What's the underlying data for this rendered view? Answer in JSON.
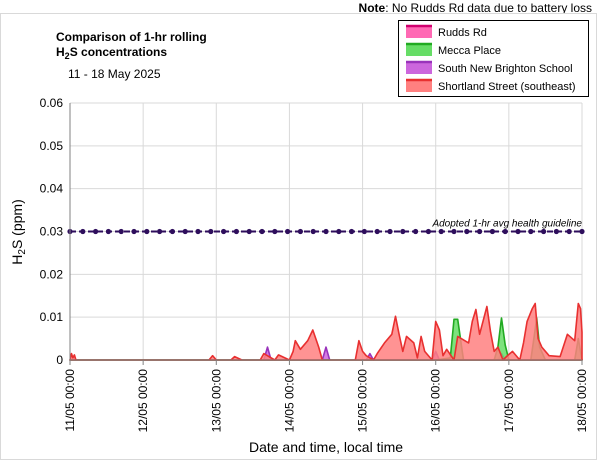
{
  "note": {
    "label": "Note",
    "text": ": No Rudds Rd data due to battery loss"
  },
  "chart_data": {
    "type": "area",
    "title_line1": "Comparison of 1-hr rolling",
    "title_line2_prefix": "H",
    "title_line2_sub": "2",
    "title_line2_suffix": "S concentrations",
    "subtitle": "11 - 18 May 2025",
    "ylabel_prefix": "H",
    "ylabel_sub": "2",
    "ylabel_suffix": "S (ppm)",
    "xlabel": "Date and time, local time",
    "ylim": [
      0,
      0.06
    ],
    "xlim": [
      0,
      7
    ],
    "yticks": [
      "0",
      "0.01",
      "0.02",
      "0.03",
      "0.04",
      "0.05",
      "0.06"
    ],
    "xticks": [
      "11/05 00:00",
      "12/05 00:00",
      "13/05 00:00",
      "14/05 00:00",
      "15/05 00:00",
      "16/05 00:00",
      "17/05 00:00",
      "18/05 00:00"
    ],
    "grid": true,
    "legend_position": "top-right",
    "guideline": {
      "label": "Adopted 1-hr avg health guideline",
      "value": 0.03,
      "color": "#2e0e5c"
    },
    "series": [
      {
        "name": "Rudds Rd",
        "fill": "#ff69b4",
        "stroke": "#d0006f",
        "x": [],
        "y": []
      },
      {
        "name": "Mecca Place",
        "fill": "#66dd66",
        "stroke": "#22aa22",
        "x": [
          0,
          5.0,
          5.2,
          5.25,
          5.3,
          5.38,
          5.8,
          5.85,
          5.9,
          5.95,
          6.0,
          6.05,
          6.3,
          6.35,
          6.38,
          6.42,
          6.5,
          6.55,
          6.9,
          6.95,
          7.0
        ],
        "y": [
          0,
          0,
          0.0005,
          0.0095,
          0.0095,
          0,
          0,
          0.003,
          0.0098,
          0.0035,
          0,
          0,
          0,
          0.006,
          0.0098,
          0.003,
          0,
          0,
          0,
          0.005,
          0
        ]
      },
      {
        "name": "South New Brighton School",
        "fill": "#cc66dd",
        "stroke": "#9933bb",
        "x": [
          0,
          2.65,
          2.7,
          2.75,
          3.45,
          3.5,
          3.55,
          4.05,
          4.1,
          4.15,
          4.95,
          5.0,
          5.05,
          5.85,
          5.9,
          5.95,
          7.0
        ],
        "y": [
          0,
          0,
          0.003,
          0,
          0,
          0.003,
          0,
          0,
          0.0015,
          0,
          0,
          0.002,
          0,
          0,
          0.0015,
          0,
          0
        ]
      },
      {
        "name": "Shortland Street (southeast)",
        "fill": "#ff8080",
        "stroke": "#e83030",
        "x": [
          0,
          0.02,
          0.04,
          0.06,
          0.08,
          1.9,
          1.95,
          2.0,
          2.2,
          2.25,
          2.35,
          2.4,
          2.6,
          2.65,
          2.8,
          2.85,
          3.0,
          3.05,
          3.08,
          3.15,
          3.25,
          3.32,
          3.4,
          3.45,
          3.5,
          3.55,
          3.6,
          3.9,
          3.95,
          4.0,
          4.05,
          4.15,
          4.2,
          4.3,
          4.4,
          4.45,
          4.5,
          4.55,
          4.6,
          4.7,
          4.75,
          4.8,
          4.85,
          4.95,
          5.0,
          5.05,
          5.1,
          5.15,
          5.25,
          5.3,
          5.45,
          5.5,
          5.55,
          5.6,
          5.7,
          5.75,
          5.8,
          5.85,
          5.92,
          5.98,
          6.05,
          6.15,
          6.2,
          6.25,
          6.32,
          6.36,
          6.4,
          6.45,
          6.55,
          6.7,
          6.8,
          6.9,
          6.95,
          6.98,
          7.0
        ],
        "y": [
          0,
          0.0015,
          0.0005,
          0.0012,
          0,
          0,
          0.001,
          0,
          0,
          0.0008,
          0,
          0,
          0,
          0.0015,
          0,
          0.0012,
          0,
          0.002,
          0.0045,
          0.0025,
          0.0045,
          0.007,
          0.003,
          0,
          0,
          0,
          0,
          0,
          0.0045,
          0.002,
          0.001,
          0,
          0.0015,
          0.004,
          0.006,
          0.0102,
          0.006,
          0.002,
          0.0055,
          0.004,
          0.0005,
          0.0055,
          0.002,
          0,
          0.009,
          0.007,
          0.001,
          0.0025,
          0,
          0.0055,
          0.004,
          0.009,
          0.0118,
          0.006,
          0.0125,
          0.0065,
          0.002,
          0.003,
          0,
          0.001,
          0.002,
          0,
          0.004,
          0.009,
          0.012,
          0.0132,
          0.005,
          0.003,
          0.001,
          0.0008,
          0.006,
          0.0045,
          0.0132,
          0.012,
          0.0065
        ]
      }
    ]
  }
}
